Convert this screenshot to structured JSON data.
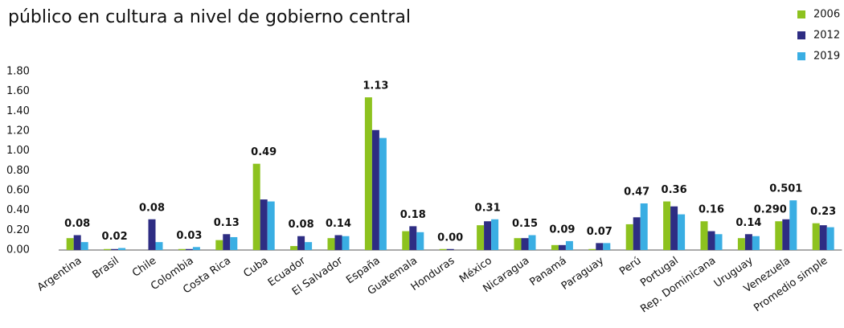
{
  "chart_data": {
    "type": "bar",
    "title": "público en cultura a nivel de gobierno central",
    "categories": [
      "Argentina",
      "Brasil",
      "Chile",
      "Colombia",
      "Costa Rica",
      "Cuba",
      "Ecuador",
      "El Salvador",
      "España",
      "Guatemala",
      "Honduras",
      "México",
      "Nicaragua",
      "Panamá",
      "Paraguay",
      "Perú",
      "Portugal",
      "Rep. Dominicana",
      "Uruguay",
      "Venezuela",
      "Promedio simple"
    ],
    "series": [
      {
        "name": "2006",
        "color": "#8dc21f",
        "values": [
          0.12,
          0.01,
          0.0,
          0.01,
          0.1,
          0.87,
          0.04,
          0.12,
          1.54,
          0.19,
          0.01,
          0.25,
          0.12,
          0.05,
          0.01,
          0.26,
          0.49,
          0.29,
          0.12,
          0.29,
          0.27
        ],
        "value_labels": [
          null,
          null,
          null,
          null,
          null,
          null,
          null,
          null,
          null,
          null,
          null,
          null,
          null,
          null,
          null,
          null,
          null,
          null,
          null,
          "0.290",
          null
        ]
      },
      {
        "name": "2012",
        "color": "#2e2d83",
        "values": [
          0.15,
          0.01,
          0.31,
          0.01,
          0.16,
          0.51,
          0.14,
          0.15,
          1.21,
          0.24,
          0.01,
          0.29,
          0.12,
          0.05,
          0.07,
          0.33,
          0.44,
          0.19,
          0.16,
          0.31,
          0.25
        ]
      },
      {
        "name": "2019",
        "color": "#3aaee3",
        "values": [
          0.08,
          0.02,
          0.08,
          0.03,
          0.13,
          0.49,
          0.08,
          0.14,
          1.13,
          0.18,
          0.0,
          0.31,
          0.15,
          0.09,
          0.07,
          0.47,
          0.36,
          0.16,
          0.14,
          0.501,
          0.23
        ],
        "value_labels": [
          "0.08",
          "0.02",
          "0.08",
          "0.03",
          "0.13",
          "0.49",
          "0.08",
          "0.14",
          "1.13",
          "0.18",
          "0.00",
          "0.31",
          "0.15",
          "0.09",
          "0.07",
          "0.47",
          "0.36",
          "0.16",
          "0.14",
          "0.501",
          "0.23"
        ]
      }
    ],
    "ylim": [
      0,
      1.8
    ],
    "yticks": [
      {
        "value": 0,
        "label": "0.00"
      },
      {
        "value": 0.2,
        "label": "0.20"
      },
      {
        "value": 0.4,
        "label": "0.40"
      },
      {
        "value": 0.6,
        "label": "0.60"
      },
      {
        "value": 0.8,
        "label": "0.80"
      },
      {
        "value": 1.0,
        "label": "1.00"
      },
      {
        "value": 1.2,
        "label": "1.20"
      },
      {
        "value": 1.4,
        "label": "1.40"
      },
      {
        "value": 1.6,
        "label": "1.60"
      },
      {
        "value": 1.8,
        "label": "1.80"
      }
    ],
    "grid": false,
    "legend": "top-right"
  }
}
